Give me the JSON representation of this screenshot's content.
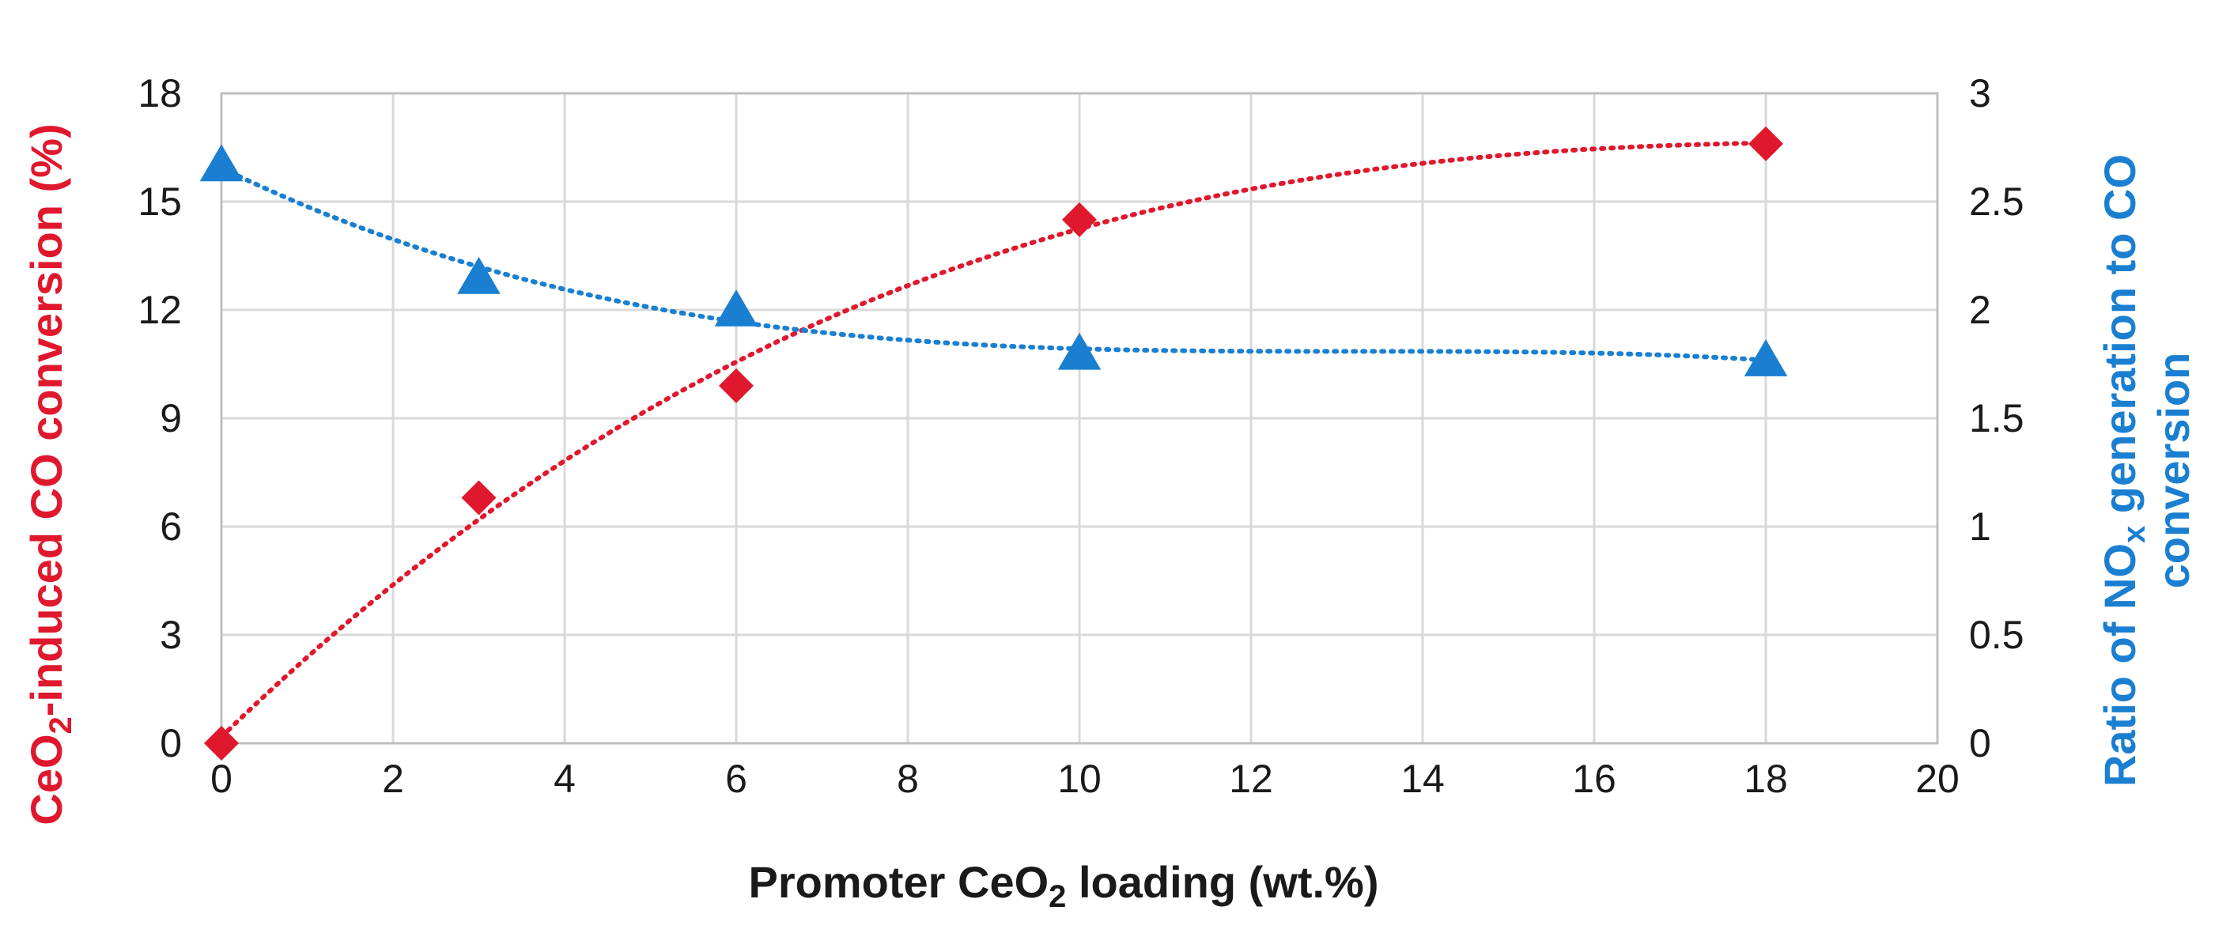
{
  "chart_data": {
    "type": "scatter",
    "title": "",
    "x": [
      0,
      3,
      6,
      10,
      18
    ],
    "xlim": [
      0,
      20
    ],
    "xticks": [
      "0",
      "2",
      "4",
      "6",
      "8",
      "10",
      "12",
      "14",
      "16",
      "18",
      "20"
    ],
    "xlabel": {
      "main": "Promoter CeO",
      "sub": "2",
      "tail": " loading (wt.%)"
    },
    "y_left": {
      "label": {
        "main": "CeO",
        "sub": "2",
        "tail": "-induced CO conversion (%)"
      },
      "ylim": [
        0,
        18
      ],
      "ticks": [
        "0",
        "3",
        "6",
        "9",
        "12",
        "15",
        "18"
      ],
      "color": "#e0182d"
    },
    "y_right": {
      "label_line1": {
        "pre": "Ratio of NO",
        "sub": "x",
        "tail": " generation to CO"
      },
      "label_line2": "conversion",
      "ylim": [
        0,
        3
      ],
      "ticks": [
        "0",
        "0.5",
        "1",
        "1.5",
        "2",
        "2.5",
        "3"
      ],
      "color": "#1a7fd1"
    },
    "series": [
      {
        "axis": "left",
        "marker": "diamond",
        "color": "#e0182d",
        "values": [
          0,
          6.8,
          9.9,
          14.5,
          16.6
        ],
        "trendline": "polynomial-dotted"
      },
      {
        "axis": "right",
        "marker": "triangle",
        "color": "#1a7fd1",
        "values": [
          2.67,
          2.15,
          2.0,
          1.8,
          1.77
        ],
        "trendline": "polynomial-dotted"
      }
    ],
    "grid": true,
    "legend": "none"
  }
}
